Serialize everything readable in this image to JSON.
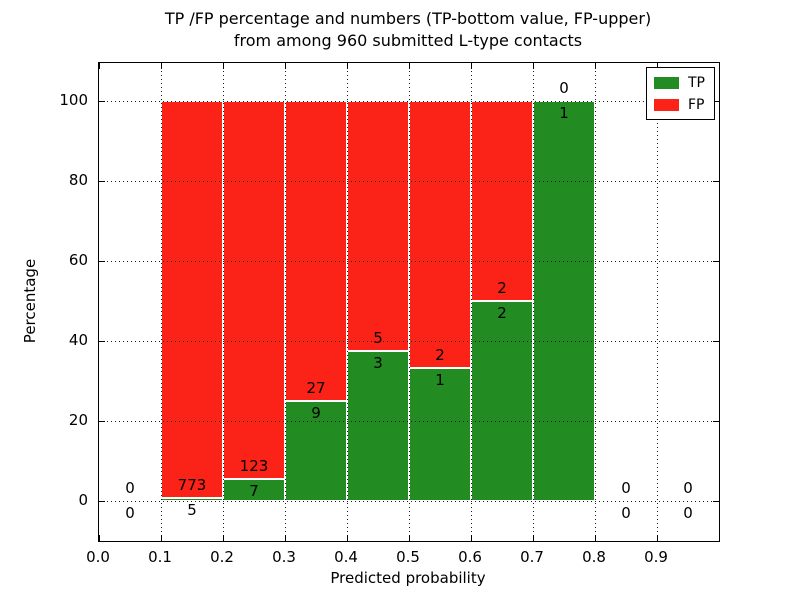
{
  "title": {
    "line1": "TP /FP percentage and numbers (TP-bottom value, FP-upper)",
    "line2": "from among 960 submitted L-type contacts"
  },
  "legend": {
    "position": "upper right",
    "items": [
      {
        "label": "TP",
        "color": "#228b22"
      },
      {
        "label": "FP",
        "color": "#fb2217"
      }
    ]
  },
  "chart_data": {
    "type": "bar",
    "stacked": true,
    "title": "TP /FP percentage and numbers (TP-bottom value, FP-upper) from among 960 submitted L-type contacts",
    "xlabel": "Predicted probability",
    "ylabel": "Percentage",
    "categories": [
      "0.0-0.1",
      "0.1-0.2",
      "0.2-0.3",
      "0.3-0.4",
      "0.4-0.5",
      "0.5-0.6",
      "0.6-0.7",
      "0.7-0.8",
      "0.8-0.9",
      "0.9-1.0"
    ],
    "series": [
      {
        "name": "TP",
        "position": "bottom",
        "counts": [
          0,
          5,
          7,
          9,
          3,
          1,
          2,
          1,
          0,
          0
        ],
        "percent": [
          0,
          0.64,
          5.38,
          25.0,
          37.5,
          33.33,
          50.0,
          100.0,
          0,
          0
        ]
      },
      {
        "name": "FP",
        "position": "upper",
        "counts": [
          0,
          773,
          123,
          27,
          5,
          2,
          2,
          0,
          0,
          0
        ],
        "percent": [
          0,
          99.36,
          94.62,
          75.0,
          62.5,
          66.67,
          50.0,
          0.0,
          0,
          0
        ]
      }
    ],
    "xlim": [
      0.0,
      1.0
    ],
    "ylim": [
      -10,
      109.5
    ],
    "xticks": [
      "0.0",
      "0.1",
      "0.2",
      "0.3",
      "0.4",
      "0.5",
      "0.6",
      "0.7",
      "0.8",
      "0.9"
    ],
    "yticks": [
      0,
      20,
      40,
      60,
      80,
      100
    ],
    "grid": true,
    "grid_style": "dotted"
  }
}
